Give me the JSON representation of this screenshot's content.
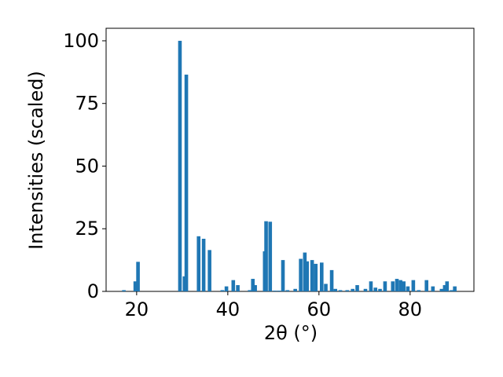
{
  "chart_data": {
    "type": "bar",
    "xlabel": "2θ (°)",
    "ylabel": "Intensities (scaled)",
    "color": "#1f77b4",
    "grid": false,
    "xlim": [
      13.3,
      94
    ],
    "ylim": [
      0,
      105
    ],
    "xticks": [
      20,
      40,
      60,
      80
    ],
    "yticks": [
      0,
      25,
      50,
      75,
      100
    ],
    "x": [
      17.2,
      19.7,
      20.3,
      29.5,
      30.5,
      30.9,
      33.6,
      34.7,
      36,
      38.8,
      39.7,
      41.2,
      42.2,
      44.8,
      45.5,
      46,
      48.1,
      48.4,
      49.3,
      50.3,
      51.2,
      52.1,
      53.1,
      54.8,
      56,
      56.9,
      57.4,
      58.5,
      59.3,
      60.6,
      61.5,
      62.8,
      63.6,
      64.7,
      66.2,
      67.4,
      68.4,
      70.2,
      71.4,
      72.4,
      73.4,
      74.5,
      76.2,
      77.1,
      77.9,
      78.6,
      79.5,
      80.7,
      81.9,
      83.6,
      85,
      86.9,
      87.6,
      88.1,
      89.1,
      89.8
    ],
    "values": [
      0.5,
      4,
      11.8,
      100,
      6,
      86.5,
      22,
      21,
      16.5,
      0.5,
      2,
      4.5,
      2.5,
      0.5,
      5,
      2.5,
      16,
      28,
      27.8,
      0.3,
      0.3,
      12.5,
      0.5,
      1,
      13,
      15.5,
      12,
      12.5,
      11,
      11.5,
      3,
      8.5,
      1,
      0.5,
      0.5,
      1,
      2.5,
      1,
      4,
      1.5,
      1,
      4,
      4,
      5,
      4.5,
      4,
      2,
      4.5,
      0.5,
      4.5,
      2,
      1,
      2.5,
      4,
      0.5,
      2
    ]
  }
}
